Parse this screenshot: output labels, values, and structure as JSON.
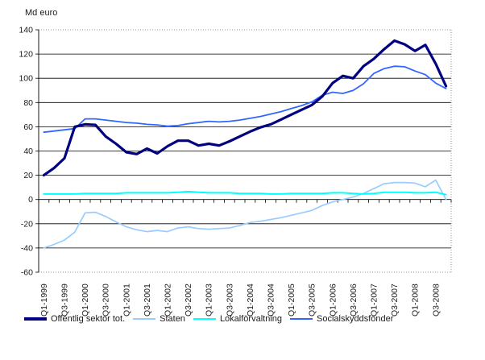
{
  "title": "Md euro",
  "legend": [
    {
      "label": "Offentlig sektor tot.",
      "color": "#000080",
      "thick": true
    },
    {
      "label": "Staten",
      "color": "#99CCFF",
      "thick": false
    },
    {
      "label": "Lokalförvaltning",
      "color": "#00FFFF",
      "thick": false
    },
    {
      "label": "Socialskyddsfonder",
      "color": "#3366FF",
      "thick": false
    }
  ],
  "chart_data": {
    "type": "line",
    "title": "Md euro",
    "ylabel": "Md euro",
    "xlabel": "",
    "ylim": [
      -60,
      140
    ],
    "ytick_step": 20,
    "grid": true,
    "legend_position": "bottom",
    "label_every": 2,
    "categories": [
      "Q1-1999",
      "Q2-1999",
      "Q3-1999",
      "Q4-1999",
      "Q1-2000",
      "Q2-2000",
      "Q3-2000",
      "Q4-2000",
      "Q1-2001",
      "Q2-2001",
      "Q3-2001",
      "Q4-2001",
      "Q1-2002",
      "Q2-2002",
      "Q3-2002",
      "Q4-2002",
      "Q1-2003",
      "Q2-2003",
      "Q3-2003",
      "Q4-2003",
      "Q1-2004",
      "Q2-2004",
      "Q3-2004",
      "Q4-2004",
      "Q1-2005",
      "Q2-2005",
      "Q3-2005",
      "Q4-2005",
      "Q1-2006",
      "Q2-2006",
      "Q3-2006",
      "Q4-2006",
      "Q1-2007",
      "Q2-2007",
      "Q3-2007",
      "Q4-2007",
      "Q1-2008",
      "Q2-2008",
      "Q3-2008",
      "Q4-2008"
    ],
    "series": [
      {
        "name": "Offentlig sektor tot.",
        "color": "#000080",
        "width": 3.2,
        "values": [
          20,
          26,
          34,
          60,
          62,
          61.5,
          52,
          46,
          39,
          37.5,
          42,
          38,
          44,
          48.5,
          48.5,
          44.5,
          46,
          44.5,
          48,
          52,
          56,
          59.5,
          62,
          66,
          70,
          74,
          78,
          85,
          96,
          102,
          100,
          110,
          116,
          124,
          131,
          128,
          122.5,
          127.5,
          112,
          93.5
        ]
      },
      {
        "name": "Staten",
        "color": "#99CCFF",
        "width": 1.7,
        "values": [
          -40,
          -37,
          -33.5,
          -27,
          -11,
          -10.5,
          -14,
          -18.5,
          -22.5,
          -25,
          -26.5,
          -25.5,
          -26.5,
          -23.5,
          -22.5,
          -24,
          -24.5,
          -24,
          -23.5,
          -21.5,
          -19,
          -18,
          -16.5,
          -15,
          -13,
          -11,
          -9,
          -5,
          -2,
          0,
          2,
          5,
          9,
          13,
          14,
          14,
          13.5,
          10.5,
          16,
          0
        ]
      },
      {
        "name": "Lokalförvaltning",
        "color": "#00FFFF",
        "width": 2,
        "values": [
          4.5,
          4.5,
          4.5,
          4.5,
          5,
          5,
          5,
          5,
          5.5,
          5.5,
          5.5,
          5.5,
          5.5,
          6,
          6.5,
          6,
          5.5,
          5.5,
          5.5,
          5,
          5,
          5,
          4.5,
          4.5,
          5,
          5,
          5,
          5,
          5.5,
          5.5,
          5,
          4.5,
          5,
          6,
          6,
          6,
          5.5,
          5.5,
          6,
          4
        ]
      },
      {
        "name": "Socialskyddsfonder",
        "color": "#3366FF",
        "width": 1.8,
        "values": [
          55.5,
          56.5,
          57.5,
          58.5,
          66.5,
          66.5,
          65.5,
          64.5,
          63.5,
          63,
          62,
          61.5,
          60.5,
          61,
          62.5,
          63.5,
          64.5,
          64,
          64.5,
          65.5,
          67,
          68.5,
          70.5,
          72.5,
          75,
          77.5,
          80.5,
          86,
          88.5,
          87.5,
          90,
          95.5,
          104,
          108,
          110,
          109.5,
          106,
          103,
          96,
          91.5
        ]
      }
    ]
  }
}
